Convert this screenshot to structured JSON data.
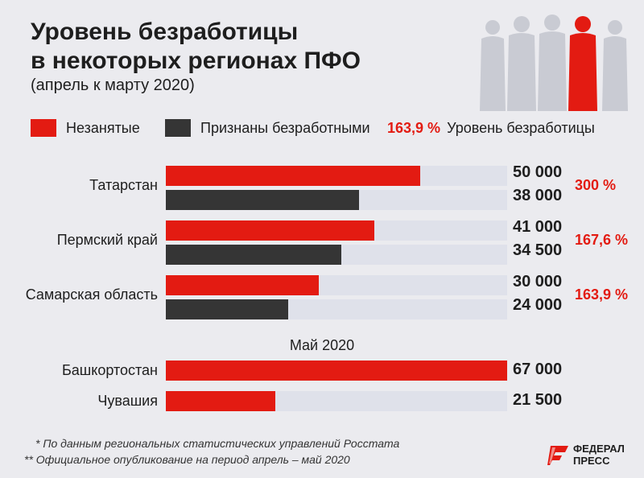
{
  "title_line1": "Уровень безработицы",
  "title_line2": "в некоторых регионах ПФО",
  "subtitle": "(апрель к марту 2020)",
  "legend": {
    "unemployed": "Незанятые",
    "registered": "Признаны безработными",
    "rate_example": "163,9 %",
    "rate_label": "Уровень безработицы"
  },
  "colors": {
    "unemployed": "#e31b12",
    "registered": "#353535",
    "track": "#dfe1ea",
    "rate_text": "#e31b12"
  },
  "may_label": "Май 2020",
  "footnotes": [
    "* По данным региональных статистических управлений Росстата",
    "** Официальное опубликование на период апрель – май 2020"
  ],
  "logo_text": [
    "ФЕДЕРАЛ",
    "ПРЕСС"
  ],
  "chart_data": {
    "type": "bar",
    "orientation": "horizontal",
    "xlim": [
      0,
      67000
    ],
    "series": [
      {
        "name": "Незанятые",
        "color": "#e31b12"
      },
      {
        "name": "Признаны безработными",
        "color": "#353535"
      }
    ],
    "groups": [
      {
        "region": "Татарстан",
        "unemployed": 50000,
        "unemployed_label": "50 000",
        "registered": 38000,
        "registered_label": "38 000",
        "rate": "300 %"
      },
      {
        "region": "Пермский край",
        "unemployed": 41000,
        "unemployed_label": "41 000",
        "registered": 34500,
        "registered_label": "34 500",
        "rate": "167,6 %"
      },
      {
        "region": "Самарская область",
        "unemployed": 30000,
        "unemployed_label": "30 000",
        "registered": 24000,
        "registered_label": "24 000",
        "rate": "163,9 %"
      }
    ],
    "may_groups": [
      {
        "region": "Башкортостан",
        "unemployed": 67000,
        "unemployed_label": "67 000"
      },
      {
        "region": "Чувашия",
        "unemployed": 21500,
        "unemployed_label": "21 500"
      }
    ]
  }
}
